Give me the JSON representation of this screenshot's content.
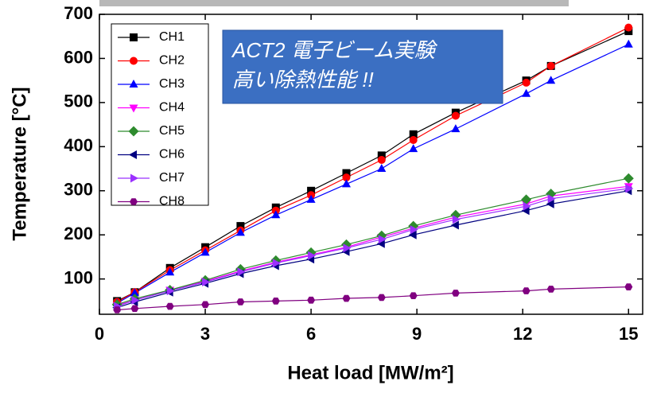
{
  "chart_data": {
    "type": "line",
    "xlabel": "Heat load [MW/m²]",
    "ylabel": "Temperature [°C]",
    "annotation": [
      "ACT2 電子ビーム実験",
      "高い除熱性能 !!"
    ],
    "x": [
      0.5,
      1,
      2,
      3,
      4,
      5,
      6,
      7,
      8,
      8.9,
      10.1,
      12.1,
      12.8,
      15
    ],
    "xlim": [
      0,
      15.4
    ],
    "xticks": [
      0,
      3,
      6,
      9,
      12,
      15
    ],
    "ylim": [
      20,
      700
    ],
    "yticks": [
      100,
      200,
      300,
      400,
      500,
      600,
      700
    ],
    "series": [
      {
        "name": "CH1",
        "color": "#000000",
        "marker": "square",
        "values": [
          50,
          70,
          125,
          172,
          220,
          262,
          300,
          340,
          380,
          428,
          477,
          550,
          583,
          662
        ]
      },
      {
        "name": "CH2",
        "color": "#ff0000",
        "marker": "circle",
        "values": [
          48,
          70,
          120,
          165,
          210,
          255,
          290,
          330,
          370,
          415,
          470,
          545,
          583,
          670
        ]
      },
      {
        "name": "CH3",
        "color": "#0000ff",
        "marker": "triangle-up",
        "values": [
          45,
          68,
          115,
          160,
          205,
          245,
          280,
          315,
          350,
          395,
          440,
          520,
          550,
          632
        ]
      },
      {
        "name": "CH4",
        "color": "#ff00ff",
        "marker": "triangle-down",
        "values": [
          40,
          52,
          75,
          95,
          118,
          138,
          155,
          172,
          195,
          215,
          240,
          270,
          288,
          310
        ]
      },
      {
        "name": "CH5",
        "color": "#2e8b2e",
        "marker": "diamond",
        "values": [
          42,
          55,
          75,
          97,
          122,
          142,
          160,
          178,
          198,
          220,
          245,
          280,
          293,
          328
        ]
      },
      {
        "name": "CH6",
        "color": "#000080",
        "marker": "triangle-left",
        "values": [
          35,
          48,
          70,
          90,
          112,
          130,
          145,
          162,
          180,
          200,
          222,
          255,
          270,
          300
        ]
      },
      {
        "name": "CH7",
        "color": "#9b30ff",
        "marker": "triangle-right",
        "values": [
          38,
          52,
          73,
          93,
          116,
          136,
          153,
          170,
          190,
          212,
          235,
          265,
          282,
          305
        ]
      },
      {
        "name": "CH8",
        "color": "#800080",
        "marker": "hexagon",
        "values": [
          30,
          33,
          38,
          42,
          48,
          50,
          52,
          56,
          58,
          62,
          68,
          73,
          77,
          82
        ]
      }
    ]
  }
}
